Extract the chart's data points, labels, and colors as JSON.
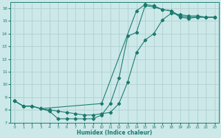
{
  "xlabel": "Humidex (Indice chaleur)",
  "bg_color": "#cce8e8",
  "line_color": "#1a7a6e",
  "grid_color": "#b0d0d0",
  "xlim": [
    -0.5,
    23.5
  ],
  "ylim": [
    7.0,
    16.5
  ],
  "yticks": [
    7,
    8,
    9,
    10,
    11,
    12,
    13,
    14,
    15,
    16
  ],
  "xticks": [
    0,
    1,
    2,
    3,
    4,
    5,
    6,
    7,
    8,
    9,
    10,
    11,
    12,
    13,
    14,
    15,
    16,
    17,
    18,
    19,
    20,
    21,
    22,
    23
  ],
  "line1_x": [
    0,
    1,
    2,
    3,
    4,
    5,
    6,
    7,
    8,
    9,
    10,
    11,
    12,
    13,
    14,
    15,
    16,
    17,
    18,
    19,
    20,
    21,
    22,
    23
  ],
  "line1_y": [
    8.7,
    8.3,
    8.3,
    8.1,
    8.0,
    7.9,
    7.8,
    7.7,
    7.6,
    7.6,
    7.7,
    7.8,
    8.5,
    10.2,
    12.5,
    13.5,
    14.0,
    15.1,
    15.6,
    15.5,
    15.4,
    15.4,
    15.3,
    15.3
  ],
  "line2_x": [
    0,
    1,
    2,
    3,
    10,
    14,
    15,
    16,
    17,
    18,
    19,
    20,
    21,
    22,
    23
  ],
  "line2_y": [
    8.7,
    8.3,
    8.3,
    8.1,
    8.5,
    15.8,
    16.3,
    16.2,
    15.9,
    15.8,
    15.4,
    15.3,
    15.3,
    15.3,
    15.3
  ],
  "line3_x": [
    0,
    1,
    2,
    3,
    4,
    5,
    6,
    7,
    8,
    9,
    10,
    11,
    12,
    13,
    14,
    15,
    16,
    17,
    18,
    19,
    20,
    21,
    22,
    23
  ],
  "line3_y": [
    8.7,
    8.3,
    8.3,
    8.1,
    7.9,
    7.3,
    7.3,
    7.3,
    7.3,
    7.3,
    7.6,
    8.5,
    10.5,
    13.8,
    14.1,
    16.2,
    16.1,
    15.9,
    15.8,
    15.3,
    15.2,
    15.3,
    15.3,
    15.3
  ],
  "marker": "D",
  "markersize": 2.2
}
